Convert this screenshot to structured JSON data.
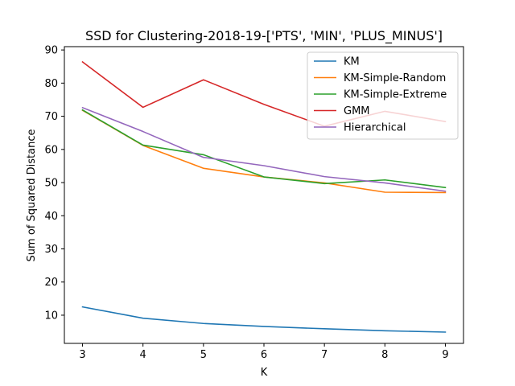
{
  "chart_data": {
    "type": "line",
    "title": "SSD for Clustering-2018-19-['PTS', 'MIN', 'PLUS_MINUS']",
    "xlabel": "K",
    "ylabel": "Sum of Squared Distance",
    "x": [
      3,
      4,
      5,
      6,
      7,
      8,
      9
    ],
    "xticks": [
      "3",
      "4",
      "5",
      "6",
      "7",
      "8",
      "9"
    ],
    "yticks": [
      "10",
      "20",
      "30",
      "40",
      "50",
      "60",
      "70",
      "80",
      "90"
    ],
    "xlim": [
      2.7,
      9.3
    ],
    "ylim": [
      1.5,
      91.0
    ],
    "grid": false,
    "legend_position": "top-right",
    "series": [
      {
        "name": "KM",
        "color": "#1f77b4",
        "values": [
          12.5,
          9.1,
          7.5,
          6.6,
          5.9,
          5.3,
          4.9
        ]
      },
      {
        "name": "KM-Simple-Random",
        "color": "#ff7f0e",
        "values": [
          71.8,
          61.2,
          54.3,
          51.7,
          49.9,
          47.1,
          47.0
        ]
      },
      {
        "name": "KM-Simple-Extreme",
        "color": "#2ca02c",
        "values": [
          71.9,
          61.3,
          58.4,
          51.7,
          49.7,
          50.8,
          48.5
        ]
      },
      {
        "name": "GMM",
        "color": "#d62728",
        "values": [
          86.4,
          72.7,
          81.0,
          73.6,
          67.0,
          71.5,
          68.4
        ]
      },
      {
        "name": "Hierarchical",
        "color": "#9467bd",
        "values": [
          72.6,
          65.4,
          57.6,
          55.1,
          51.8,
          49.9,
          47.4
        ]
      }
    ]
  }
}
